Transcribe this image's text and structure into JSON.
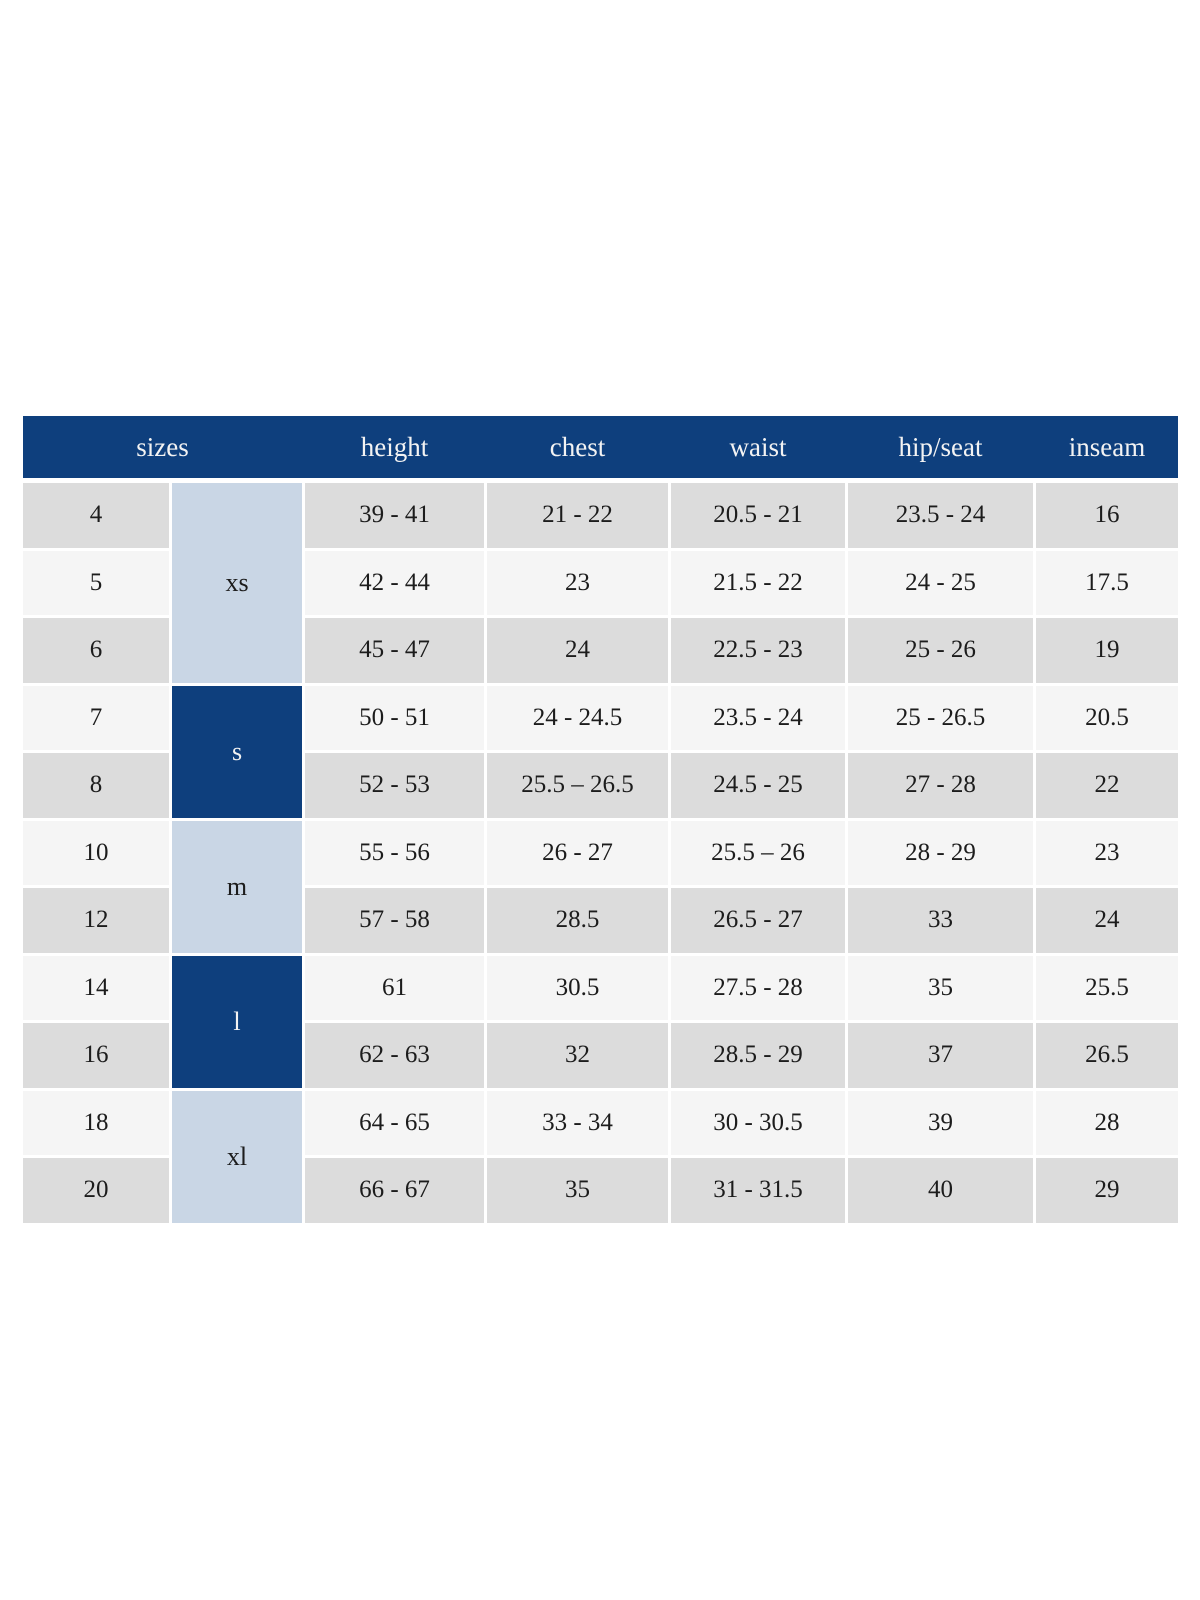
{
  "colors": {
    "header_bg": "#0e3f7d",
    "group_dark_bg": "#0e3f7d",
    "group_light_bg": "#c9d6e5",
    "row_gray_bg": "#dcdcdc",
    "row_light_bg": "#f5f5f5",
    "header_text": "#f3f3f3",
    "cell_text": "#1c1c1c"
  },
  "table": {
    "headers": [
      {
        "id": "sizes",
        "label": "sizes"
      },
      {
        "id": "height",
        "label": "height"
      },
      {
        "id": "chest",
        "label": "chest"
      },
      {
        "id": "waist",
        "label": "waist"
      },
      {
        "id": "hip_seat",
        "label": "hip/seat"
      },
      {
        "id": "inseam",
        "label": "inseam"
      }
    ],
    "groups": [
      {
        "label": "xs",
        "style": "light",
        "rows": [
          {
            "size": "4",
            "height": "39 - 41",
            "chest": "21 - 22",
            "waist": "20.5 - 21",
            "hip_seat": "23.5 - 24",
            "inseam": "16"
          },
          {
            "size": "5",
            "height": "42 - 44",
            "chest": "23",
            "waist": "21.5 - 22",
            "hip_seat": "24 - 25",
            "inseam": "17.5"
          },
          {
            "size": "6",
            "height": "45 - 47",
            "chest": "24",
            "waist": "22.5 - 23",
            "hip_seat": "25 - 26",
            "inseam": "19"
          }
        ]
      },
      {
        "label": "s",
        "style": "dark",
        "rows": [
          {
            "size": "7",
            "height": "50 - 51",
            "chest": "24 - 24.5",
            "waist": "23.5 - 24",
            "hip_seat": "25 - 26.5",
            "inseam": "20.5"
          },
          {
            "size": "8",
            "height": "52 - 53",
            "chest": "25.5 – 26.5",
            "waist": "24.5 - 25",
            "hip_seat": "27 - 28",
            "inseam": "22"
          }
        ]
      },
      {
        "label": "m",
        "style": "light",
        "rows": [
          {
            "size": "10",
            "height": "55 - 56",
            "chest": "26 - 27",
            "waist": "25.5 – 26",
            "hip_seat": "28 - 29",
            "inseam": "23"
          },
          {
            "size": "12",
            "height": "57 - 58",
            "chest": "28.5",
            "waist": "26.5 - 27",
            "hip_seat": "33",
            "inseam": "24"
          }
        ]
      },
      {
        "label": "l",
        "style": "dark",
        "rows": [
          {
            "size": "14",
            "height": "61",
            "chest": "30.5",
            "waist": "27.5 - 28",
            "hip_seat": "35",
            "inseam": "25.5"
          },
          {
            "size": "16",
            "height": "62 - 63",
            "chest": "32",
            "waist": "28.5 - 29",
            "hip_seat": "37",
            "inseam": "26.5"
          }
        ]
      },
      {
        "label": "xl",
        "style": "light",
        "rows": [
          {
            "size": "18",
            "height": "64 - 65",
            "chest": "33 - 34",
            "waist": "30 - 30.5",
            "hip_seat": "39",
            "inseam": "28"
          },
          {
            "size": "20",
            "height": "66 - 67",
            "chest": "35",
            "waist": "31 - 31.5",
            "hip_seat": "40",
            "inseam": "29"
          }
        ]
      }
    ]
  }
}
